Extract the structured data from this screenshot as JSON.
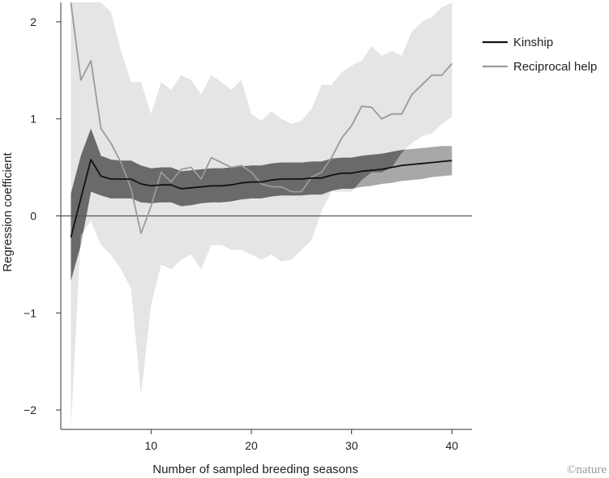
{
  "chart_data": {
    "type": "line",
    "xlabel": "Number of sampled breeding seasons",
    "ylabel": "Regression coefficient",
    "xlim": [
      1,
      42
    ],
    "ylim": [
      -2.2,
      2.2
    ],
    "xticks": [
      10,
      20,
      30,
      40
    ],
    "yticks": [
      -2,
      -1,
      0,
      1,
      2
    ],
    "ytick_labels": [
      "−2",
      "−1",
      "0",
      "1",
      "2"
    ],
    "reference_line_y": 0,
    "grid": false,
    "legend_position": "top-right",
    "x": [
      2,
      3,
      4,
      5,
      6,
      7,
      8,
      9,
      10,
      11,
      12,
      13,
      14,
      15,
      16,
      17,
      18,
      19,
      20,
      21,
      22,
      23,
      24,
      25,
      26,
      27,
      28,
      29,
      30,
      31,
      32,
      33,
      34,
      35,
      36,
      37,
      38,
      39,
      40
    ],
    "series": [
      {
        "name": "Kinship",
        "color": "#111111",
        "values": [
          -0.22,
          0.18,
          0.58,
          0.41,
          0.38,
          0.38,
          0.38,
          0.33,
          0.31,
          0.32,
          0.32,
          0.28,
          0.29,
          0.3,
          0.31,
          0.31,
          0.32,
          0.34,
          0.35,
          0.35,
          0.37,
          0.38,
          0.38,
          0.38,
          0.39,
          0.39,
          0.42,
          0.44,
          0.44,
          0.46,
          0.47,
          0.48,
          0.5,
          0.52,
          0.53,
          0.54,
          0.55,
          0.56,
          0.57
        ],
        "ci_low": [
          -0.67,
          -0.3,
          0.25,
          0.21,
          0.18,
          0.18,
          0.18,
          0.14,
          0.13,
          0.14,
          0.14,
          0.1,
          0.11,
          0.13,
          0.14,
          0.14,
          0.15,
          0.17,
          0.18,
          0.18,
          0.2,
          0.21,
          0.21,
          0.21,
          0.22,
          0.22,
          0.26,
          0.28,
          0.28,
          0.3,
          0.31,
          0.33,
          0.34,
          0.36,
          0.37,
          0.38,
          0.4,
          0.41,
          0.42
        ],
        "ci_high": [
          0.23,
          0.62,
          0.9,
          0.62,
          0.58,
          0.57,
          0.57,
          0.52,
          0.49,
          0.5,
          0.5,
          0.46,
          0.47,
          0.48,
          0.49,
          0.49,
          0.5,
          0.51,
          0.52,
          0.52,
          0.54,
          0.55,
          0.55,
          0.55,
          0.56,
          0.56,
          0.59,
          0.6,
          0.6,
          0.62,
          0.63,
          0.64,
          0.66,
          0.68,
          0.69,
          0.7,
          0.71,
          0.72,
          0.72
        ]
      },
      {
        "name": "Reciprocal help",
        "color": "#9a9a9a",
        "values": [
          2.25,
          1.4,
          1.6,
          0.9,
          0.75,
          0.55,
          0.28,
          -0.18,
          0.1,
          0.45,
          0.35,
          0.48,
          0.5,
          0.38,
          0.6,
          0.55,
          0.5,
          0.52,
          0.45,
          0.33,
          0.3,
          0.3,
          0.25,
          0.25,
          0.4,
          0.45,
          0.6,
          0.8,
          0.93,
          1.13,
          1.12,
          1.0,
          1.05,
          1.05,
          1.25,
          1.35,
          1.45,
          1.45,
          1.57
        ],
        "ci_low": [
          -2.25,
          -0.2,
          -0.05,
          -0.3,
          -0.4,
          -0.55,
          -0.75,
          -1.85,
          -0.92,
          -0.5,
          -0.55,
          -0.45,
          -0.4,
          -0.55,
          -0.3,
          -0.3,
          -0.35,
          -0.35,
          -0.4,
          -0.45,
          -0.4,
          -0.47,
          -0.45,
          -0.35,
          -0.25,
          0.05,
          0.25,
          0.25,
          0.25,
          0.37,
          0.45,
          0.45,
          0.5,
          0.65,
          0.75,
          0.82,
          0.85,
          0.95,
          1.02
        ],
        "ci_high": [
          2.25,
          2.25,
          2.25,
          2.25,
          2.1,
          1.7,
          1.38,
          1.38,
          1.05,
          1.38,
          1.3,
          1.45,
          1.4,
          1.25,
          1.45,
          1.38,
          1.3,
          1.4,
          1.05,
          0.98,
          1.08,
          1.0,
          0.95,
          0.98,
          1.1,
          1.35,
          1.35,
          1.48,
          1.55,
          1.6,
          1.75,
          1.65,
          1.7,
          1.65,
          1.9,
          2.0,
          2.05,
          2.15,
          2.2
        ]
      }
    ]
  },
  "credit": "©nature"
}
